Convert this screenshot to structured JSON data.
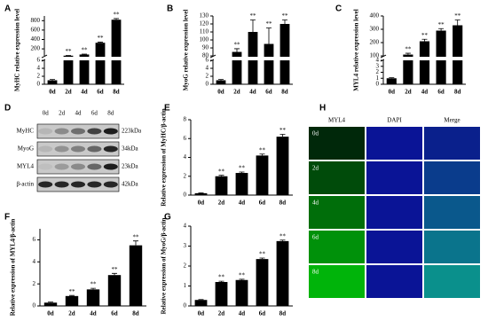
{
  "chart_data": [
    {
      "type": "bar",
      "panel": "A",
      "ylabel": "MyHC relative expression level",
      "categories": [
        "0d",
        "2d",
        "4d",
        "6d",
        "8d"
      ],
      "values": [
        1,
        55,
        80,
        330,
        820
      ],
      "errors": [
        0.2,
        5,
        8,
        15,
        25
      ],
      "sig": [
        null,
        "**",
        "**",
        "**",
        "**"
      ],
      "color": "#000000",
      "ylim": [
        0,
        900
      ],
      "ybreak": [
        6,
        50
      ],
      "yticks": [
        0,
        2,
        4,
        6,
        200,
        400,
        600,
        800
      ]
    },
    {
      "type": "bar",
      "panel": "B",
      "ylabel": "MyoG relative expression level",
      "categories": [
        "0d",
        "2d",
        "4d",
        "6d",
        "8d"
      ],
      "values": [
        1,
        85,
        110,
        95,
        120
      ],
      "errors": [
        0.2,
        4,
        15,
        20,
        5
      ],
      "sig": [
        null,
        "**",
        "**",
        "**",
        "**"
      ],
      "color": "#000000",
      "ylim": [
        0,
        130
      ],
      "ybreak": [
        6,
        80
      ],
      "yticks": [
        0,
        2,
        4,
        6,
        80,
        90,
        100,
        110,
        120,
        130
      ]
    },
    {
      "type": "bar",
      "panel": "C",
      "ylabel": "MYL4 relative expression level",
      "categories": [
        "0d",
        "2d",
        "4d",
        "6d",
        "8d"
      ],
      "values": [
        1,
        110,
        210,
        290,
        330
      ],
      "errors": [
        0.1,
        10,
        15,
        15,
        40
      ],
      "sig": [
        null,
        "**",
        "**",
        "**",
        "**"
      ],
      "color": "#000000",
      "ylim": [
        0,
        400
      ],
      "ybreak": [
        4,
        100
      ],
      "yticks": [
        0,
        1,
        2,
        3,
        4,
        100,
        200,
        300,
        400
      ]
    },
    {
      "type": "bar",
      "panel": "E",
      "ylabel": "Relative expression of MyHC/β-actin",
      "categories": [
        "0d",
        "2d",
        "4d",
        "6d",
        "8d"
      ],
      "values": [
        0.2,
        2.0,
        2.35,
        4.2,
        6.2
      ],
      "errors": [
        0.05,
        0.1,
        0.1,
        0.15,
        0.25
      ],
      "sig": [
        null,
        "**",
        "**",
        "**",
        "**"
      ],
      "color": "#000000",
      "ylim": [
        0,
        8
      ],
      "yticks": [
        0,
        2,
        4,
        6,
        8
      ]
    },
    {
      "type": "bar",
      "panel": "F",
      "ylabel": "Relative expression of MYL4/β-actin",
      "categories": [
        "0d",
        "2d",
        "4d",
        "6d",
        "8d"
      ],
      "values": [
        0.3,
        0.9,
        1.5,
        2.8,
        5.5
      ],
      "errors": [
        0.05,
        0.05,
        0.1,
        0.15,
        0.4
      ],
      "sig": [
        null,
        "**",
        "**",
        "**",
        "**"
      ],
      "color": "#000000",
      "ylim": [
        0,
        7
      ],
      "yticks": [
        0,
        2,
        4,
        6
      ]
    },
    {
      "type": "bar",
      "panel": "G",
      "ylabel": "Relative expression of MyoG/β-actin",
      "categories": [
        "0d",
        "2d",
        "4d",
        "6d",
        "8d"
      ],
      "values": [
        0.3,
        1.2,
        1.3,
        2.35,
        3.25
      ],
      "errors": [
        0.02,
        0.04,
        0.04,
        0.05,
        0.05
      ],
      "sig": [
        null,
        "**",
        "**",
        "**",
        "**"
      ],
      "color": "#000000",
      "ylim": [
        0,
        4
      ],
      "yticks": [
        0,
        1,
        2,
        3,
        4
      ]
    }
  ],
  "blot": {
    "panel": "D",
    "lanes": [
      "0d",
      "2d",
      "4d",
      "6d",
      "8d"
    ],
    "proteins": [
      "MyHC",
      "MyoG",
      "MYL4",
      "β-actin"
    ],
    "sizes": [
      "223kDa",
      "34kDa",
      "23kDa",
      "42kDa"
    ]
  },
  "microscopy": {
    "panel": "H",
    "columns": [
      "MYL4",
      "DAPI",
      "Merge"
    ],
    "rows": [
      "0d",
      "2d",
      "4d",
      "6d",
      "8d"
    ]
  }
}
